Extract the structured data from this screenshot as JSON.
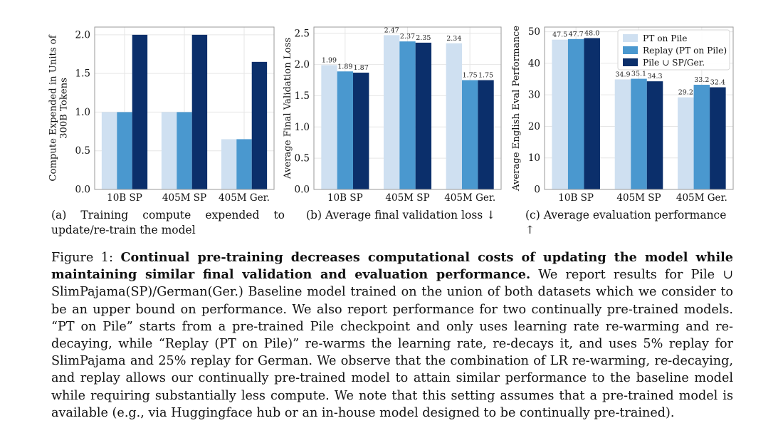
{
  "colors": {
    "pt_on_pile": "#cfe0f1",
    "replay": "#4a98cf",
    "union": "#0b2f6b",
    "grid": "#e6e6e6",
    "frame": "#9a9a9a"
  },
  "chart_data": [
    {
      "type": "bar",
      "categories": [
        "10B SP",
        "405M SP",
        "405M Ger."
      ],
      "series": [
        {
          "values": [
            1.0,
            1.0,
            0.65
          ]
        },
        {
          "values": [
            1.0,
            1.0,
            0.65
          ]
        },
        {
          "values": [
            2.0,
            2.0,
            1.65
          ]
        }
      ],
      "ylabel": [
        "Compute Expended in Units of",
        "300B Tokens"
      ],
      "ylim": [
        0,
        2.1
      ],
      "yticks": [
        "0.0",
        "0.5",
        "1.0",
        "1.5",
        "2.0"
      ],
      "grid": true,
      "show_value_labels": false
    },
    {
      "type": "bar",
      "categories": [
        "10B SP",
        "405M SP",
        "405M Ger."
      ],
      "series": [
        {
          "values": [
            1.99,
            2.47,
            2.34
          ]
        },
        {
          "values": [
            1.89,
            2.37,
            1.75
          ]
        },
        {
          "values": [
            1.87,
            2.35,
            1.75
          ]
        }
      ],
      "value_labels": [
        [
          "1.99",
          "2.47",
          "2.34"
        ],
        [
          "1.89",
          "2.37",
          "1.75"
        ],
        [
          "1.87",
          "2.35",
          "1.75"
        ]
      ],
      "ylabel": [
        "Average Final Validation Loss"
      ],
      "ylim": [
        0,
        2.6
      ],
      "yticks": [
        "0.0",
        "0.5",
        "1.0",
        "1.5",
        "2.0",
        "2.5"
      ],
      "grid": true,
      "show_value_labels": true
    },
    {
      "type": "bar",
      "categories": [
        "10B SP",
        "405M SP",
        "405M Ger."
      ],
      "series": [
        {
          "name": "PT on Pile",
          "values": [
            47.5,
            34.9,
            29.2
          ]
        },
        {
          "name": "Replay (PT on Pile)",
          "values": [
            47.7,
            35.1,
            33.2
          ]
        },
        {
          "name": "Pile ∪ SP/Ger.",
          "values": [
            48.0,
            34.3,
            32.4
          ]
        }
      ],
      "value_labels": [
        [
          "47.5",
          "34.9",
          "29.2"
        ],
        [
          "47.7",
          "35.1",
          "33.2"
        ],
        [
          "48.0",
          "34.3",
          "32.4"
        ]
      ],
      "ylabel": [
        "Average English Eval Performance"
      ],
      "ylim": [
        0,
        51.5
      ],
      "yticks": [
        "0",
        "10",
        "20",
        "30",
        "40",
        "50"
      ],
      "grid": true,
      "legend": "top-right",
      "show_value_labels": true
    }
  ],
  "subcaptions": {
    "a": "(a) Training compute expended to update/re-train the model",
    "b": "(b) Average final validation loss ↓",
    "c": "(c) Average evaluation performance ↑"
  },
  "caption": {
    "label": "Figure 1: ",
    "bold": "Continual pre-training decreases computational costs of updating the model while maintaining similar final validation and evaluation performance.",
    "body": " We report results for Pile ∪ SlimPajama(SP)/German(Ger.) Baseline model trained on the union of both datasets which we consider to be an upper bound on performance. We also report performance for two continually pre-trained models. “PT on Pile” starts from a pre-trained Pile checkpoint and only uses learning rate re-warming and re-decaying, while “Replay (PT on Pile)” re-warms the learning rate, re-decays it, and uses 5% replay for SlimPajama and 25% replay for German. We observe that the combination of LR re-warming, re-decaying, and replay allows our continually pre-trained model to attain similar performance to the baseline model while requiring substantially less compute. We note that this setting assumes that a pre-trained model is available (e.g., via Huggingface hub or an in-house model designed to be continually pre-trained)."
  }
}
